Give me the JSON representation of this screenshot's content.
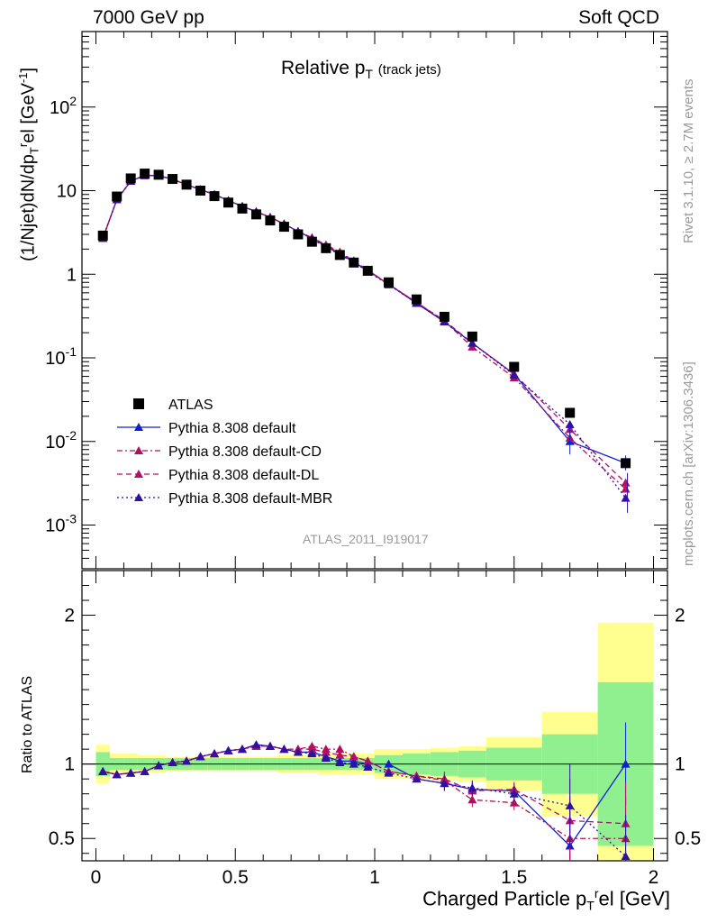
{
  "header": {
    "left": "7000 GeV pp",
    "right": "Soft QCD"
  },
  "side": {
    "rivet": "Rivet 3.1.10, ≥ 2.7M events",
    "mcplots": "mcplots.cern.ch [arXiv:1306.3436]"
  },
  "watermark": "ATLAS_2011_I919017",
  "colors": {
    "data": "#000000",
    "default": "#1020d0",
    "cd": "#b0105a",
    "dl": "#b0106a",
    "mbr": "#3010a0",
    "band_inner": "#90f090",
    "band_outer": "#ffff90"
  },
  "chart_data": [
    {
      "type": "scatter",
      "title": "Relative p_T (track jets)",
      "title_main": "Relative p",
      "title_sub": "T",
      "title_extra": "(track jets)",
      "ylabel": "(1/Njet)dN/dp_T^rel [GeV^-1]",
      "yscale": "log",
      "xlim": [
        -0.05,
        2.05
      ],
      "ylim": [
        0.0003,
        800
      ],
      "ytick_labels": [
        "10^-3",
        "10^-2",
        "10^-1",
        "1",
        "10",
        "10^2"
      ],
      "xtick_labels": [
        "0",
        "0.5",
        "1",
        "1.5",
        "2"
      ],
      "legend": [
        "ATLAS",
        "Pythia 8.308 default",
        "Pythia 8.308 default-CD",
        "Pythia 8.308 default-DL",
        "Pythia 8.308 default-MBR"
      ],
      "legend_position": "bottom-left",
      "x": [
        0.025,
        0.075,
        0.125,
        0.175,
        0.225,
        0.275,
        0.325,
        0.375,
        0.425,
        0.475,
        0.525,
        0.575,
        0.625,
        0.675,
        0.725,
        0.775,
        0.825,
        0.875,
        0.925,
        0.975,
        1.05,
        1.15,
        1.25,
        1.35,
        1.5,
        1.7,
        1.9
      ],
      "series": [
        {
          "name": "ATLAS",
          "marker": "square",
          "values": [
            2.9,
            8.5,
            14.0,
            16.0,
            15.5,
            13.8,
            11.8,
            10.0,
            8.6,
            7.2,
            6.1,
            5.2,
            4.4,
            3.7,
            3.0,
            2.45,
            2.05,
            1.7,
            1.38,
            1.1,
            0.8,
            0.5,
            0.31,
            0.18,
            0.078,
            0.022,
            0.0055
          ]
        },
        {
          "name": "Pythia 8.308 default",
          "values": [
            2.7,
            7.8,
            13.0,
            15.2,
            15.1,
            13.7,
            11.8,
            10.3,
            9.0,
            7.6,
            6.5,
            5.6,
            4.8,
            4.0,
            3.25,
            2.7,
            2.15,
            1.75,
            1.4,
            1.1,
            0.76,
            0.45,
            0.27,
            0.15,
            0.064,
            0.01,
            0.0055
          ]
        },
        {
          "name": "Pythia 8.308 default-CD",
          "values": [
            2.7,
            7.8,
            13.0,
            15.2,
            15.1,
            13.7,
            11.8,
            10.3,
            9.0,
            7.6,
            6.5,
            5.6,
            4.8,
            4.0,
            3.25,
            2.75,
            2.25,
            1.85,
            1.45,
            1.12,
            0.76,
            0.46,
            0.275,
            0.135,
            0.058,
            0.011,
            0.0027
          ]
        },
        {
          "name": "Pythia 8.308 default-DL",
          "values": [
            2.7,
            7.8,
            13.0,
            15.2,
            15.1,
            13.7,
            11.8,
            10.3,
            9.0,
            7.6,
            6.5,
            5.6,
            4.8,
            4.0,
            3.25,
            2.7,
            2.2,
            1.8,
            1.45,
            1.12,
            0.76,
            0.46,
            0.28,
            0.15,
            0.064,
            0.014,
            0.0032
          ]
        },
        {
          "name": "Pythia 8.308 default-MBR",
          "values": [
            2.7,
            7.8,
            13.0,
            15.2,
            15.1,
            13.7,
            11.8,
            10.3,
            9.0,
            7.6,
            6.5,
            5.6,
            4.8,
            4.0,
            3.25,
            2.65,
            2.1,
            1.72,
            1.38,
            1.08,
            0.75,
            0.45,
            0.27,
            0.15,
            0.062,
            0.016,
            0.0021
          ]
        }
      ]
    },
    {
      "type": "scatter",
      "ylabel": "Ratio to ATLAS",
      "xlabel": "Charged Particle p_T^rel [GeV]",
      "xlabel_main": "Charged Particle p",
      "xlabel_sub": "T",
      "xlabel_sup": "r",
      "xlabel_tail": "el [GeV]",
      "xlim": [
        -0.05,
        2.05
      ],
      "ylim": [
        0.35,
        2.3
      ],
      "ytick_labels": [
        "0.5",
        "1",
        "2"
      ],
      "xtick_labels": [
        "0",
        "0.5",
        "1",
        "1.5",
        "2"
      ],
      "bin_edges": [
        0.0,
        0.05,
        0.1,
        0.15,
        0.2,
        0.25,
        0.3,
        0.35,
        0.4,
        0.45,
        0.5,
        0.55,
        0.6,
        0.65,
        0.7,
        0.75,
        0.8,
        0.85,
        0.9,
        0.95,
        1.0,
        1.1,
        1.2,
        1.3,
        1.4,
        1.6,
        1.8,
        2.0
      ],
      "band_inner_halfwidth": [
        0.08,
        0.04,
        0.04,
        0.04,
        0.04,
        0.04,
        0.04,
        0.04,
        0.04,
        0.04,
        0.04,
        0.04,
        0.04,
        0.04,
        0.04,
        0.04,
        0.04,
        0.04,
        0.04,
        0.04,
        0.06,
        0.07,
        0.08,
        0.09,
        0.11,
        0.2,
        0.55
      ],
      "band_outer_halfwidth": [
        0.13,
        0.07,
        0.07,
        0.06,
        0.06,
        0.05,
        0.05,
        0.05,
        0.05,
        0.05,
        0.05,
        0.05,
        0.05,
        0.06,
        0.06,
        0.06,
        0.07,
        0.07,
        0.07,
        0.07,
        0.1,
        0.1,
        0.11,
        0.12,
        0.18,
        0.35,
        0.95
      ],
      "x": [
        0.025,
        0.075,
        0.125,
        0.175,
        0.225,
        0.275,
        0.325,
        0.375,
        0.425,
        0.475,
        0.525,
        0.575,
        0.625,
        0.675,
        0.725,
        0.775,
        0.825,
        0.875,
        0.925,
        0.975,
        1.05,
        1.15,
        1.25,
        1.35,
        1.5,
        1.7,
        1.9
      ],
      "series": [
        {
          "name": "Pythia 8.308 default",
          "values": [
            0.95,
            0.93,
            0.94,
            0.95,
            0.99,
            1.01,
            1.02,
            1.05,
            1.07,
            1.09,
            1.1,
            1.13,
            1.12,
            1.1,
            1.08,
            1.08,
            1.05,
            1.02,
            1.02,
            1.0,
            1.0,
            0.9,
            0.87,
            0.83,
            0.82,
            0.45,
            1.0
          ]
        },
        {
          "name": "Pythia 8.308 default-CD",
          "values": [
            0.95,
            0.93,
            0.94,
            0.95,
            0.99,
            1.01,
            1.02,
            1.05,
            1.07,
            1.09,
            1.1,
            1.12,
            1.12,
            1.1,
            1.1,
            1.12,
            1.1,
            1.1,
            1.05,
            1.02,
            0.95,
            0.92,
            0.89,
            0.76,
            0.74,
            0.5,
            0.5
          ]
        },
        {
          "name": "Pythia 8.308 default-DL",
          "values": [
            0.95,
            0.93,
            0.94,
            0.95,
            0.99,
            1.01,
            1.02,
            1.05,
            1.07,
            1.09,
            1.1,
            1.12,
            1.12,
            1.1,
            1.1,
            1.1,
            1.08,
            1.06,
            1.05,
            1.02,
            0.95,
            0.92,
            0.9,
            0.82,
            0.83,
            0.62,
            0.6
          ]
        },
        {
          "name": "Pythia 8.308 default-MBR",
          "values": [
            0.95,
            0.93,
            0.94,
            0.95,
            0.99,
            1.01,
            1.02,
            1.05,
            1.07,
            1.09,
            1.1,
            1.13,
            1.12,
            1.1,
            1.08,
            1.07,
            1.04,
            1.01,
            1.0,
            0.98,
            0.94,
            0.9,
            0.87,
            0.84,
            0.8,
            0.72,
            0.38
          ]
        }
      ]
    }
  ]
}
